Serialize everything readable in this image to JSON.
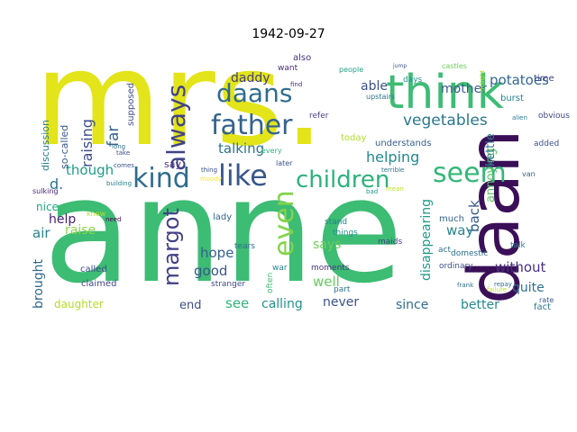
{
  "title": "1942-09-27",
  "words": [
    {
      "text": "mrs.",
      "color": "#e3e419"
    },
    {
      "text": "anne",
      "color": "#3dbc74"
    },
    {
      "text": "daan",
      "color": "#3a0f58"
    },
    {
      "text": "think",
      "color": "#3dbc74"
    },
    {
      "text": "father",
      "color": "#33638d"
    },
    {
      "text": "daans",
      "color": "#2f6c8e"
    },
    {
      "text": "like",
      "color": "#38578c"
    },
    {
      "text": "children",
      "color": "#2db27d"
    },
    {
      "text": "kind",
      "color": "#2f6c8e"
    },
    {
      "text": "seem",
      "color": "#35b779"
    },
    {
      "text": "always",
      "color": "#404387"
    },
    {
      "text": "even",
      "color": "#83d34b"
    },
    {
      "text": "margot",
      "color": "#424086"
    },
    {
      "text": "vegetables",
      "color": "#2a788e"
    },
    {
      "text": "potatoes",
      "color": "#31668e"
    },
    {
      "text": "raising",
      "color": "#3e4c8a"
    },
    {
      "text": "daddy",
      "color": "#433e85"
    },
    {
      "text": "able",
      "color": "#3b518b"
    },
    {
      "text": "mother",
      "color": "#38588c"
    },
    {
      "text": "far",
      "color": "#34618d"
    },
    {
      "text": "talking",
      "color": "#2c738e"
    },
    {
      "text": "helping",
      "color": "#23898e"
    },
    {
      "text": "though",
      "color": "#1e9b8a"
    },
    {
      "text": "d.",
      "color": "#2c728e"
    },
    {
      "text": "discussion",
      "color": "#287d8e"
    },
    {
      "text": "so-called",
      "color": "#38588c"
    },
    {
      "text": "brought",
      "color": "#31688e"
    },
    {
      "text": "annoying",
      "color": "#5cc863"
    },
    {
      "text": "kettle",
      "color": "#2a788e"
    },
    {
      "text": "back",
      "color": "#38598c"
    },
    {
      "text": "disappearing",
      "color": "#1f998a"
    },
    {
      "text": "air",
      "color": "#27808e"
    },
    {
      "text": "help",
      "color": "#481e6f"
    },
    {
      "text": "nice",
      "color": "#21a685"
    },
    {
      "text": "hope",
      "color": "#34618d"
    },
    {
      "text": "says",
      "color": "#6ece58"
    },
    {
      "text": "way",
      "color": "#25848e"
    },
    {
      "text": "good",
      "color": "#39558c"
    },
    {
      "text": "well",
      "color": "#65cb5e"
    },
    {
      "text": "without",
      "color": "#472f7d"
    },
    {
      "text": "quite",
      "color": "#2e6f8e"
    },
    {
      "text": "see",
      "color": "#2fb47c"
    },
    {
      "text": "end",
      "color": "#3d4e8a"
    },
    {
      "text": "calling",
      "color": "#21918c"
    },
    {
      "text": "never",
      "color": "#3b518b"
    },
    {
      "text": "since",
      "color": "#2f6b8e"
    },
    {
      "text": "better",
      "color": "#23898e"
    },
    {
      "text": "daughter",
      "color": "#b5de2b"
    },
    {
      "text": "claimed",
      "color": "#404688"
    },
    {
      "text": "called",
      "color": "#3e4989"
    },
    {
      "text": "today",
      "color": "#b2dd2d"
    },
    {
      "text": "understands",
      "color": "#355f8d"
    },
    {
      "text": "say",
      "color": "#46327e"
    },
    {
      "text": "part",
      "color": "#2c728e"
    },
    {
      "text": "moments",
      "color": "#463480"
    },
    {
      "text": "ordinary",
      "color": "#3b528b"
    },
    {
      "text": "domestic",
      "color": "#2e6e8e"
    },
    {
      "text": "act",
      "color": "#2c728e"
    },
    {
      "text": "stand",
      "color": "#26828e"
    },
    {
      "text": "things",
      "color": "#21918c"
    },
    {
      "text": "maids",
      "color": "#414487"
    },
    {
      "text": "lady",
      "color": "#31678e"
    },
    {
      "text": "tears",
      "color": "#2d708e"
    },
    {
      "text": "stranger",
      "color": "#3f4889"
    },
    {
      "text": "much",
      "color": "#33638d"
    },
    {
      "text": "talk",
      "color": "#26828e"
    },
    {
      "text": "added",
      "color": "#3b528b"
    },
    {
      "text": "obvious",
      "color": "#3f4788"
    },
    {
      "text": "burst",
      "color": "#26828e"
    },
    {
      "text": "time",
      "color": "#424086"
    },
    {
      "text": "also",
      "color": "#46337e"
    },
    {
      "text": "want",
      "color": "#472d7b"
    },
    {
      "text": "refer",
      "color": "#423f85"
    },
    {
      "text": "supposed",
      "color": "#3e4a89"
    },
    {
      "text": "days",
      "color": "#1f948c"
    },
    {
      "text": "people",
      "color": "#1fa088"
    },
    {
      "text": "upstairs",
      "color": "#2b748e"
    },
    {
      "text": "castles",
      "color": "#6ece58"
    },
    {
      "text": "later",
      "color": "#3b518b"
    },
    {
      "text": "every",
      "color": "#2db27d"
    },
    {
      "text": "often",
      "color": "#3dbc74"
    },
    {
      "text": "war",
      "color": "#26828e"
    },
    {
      "text": "fact",
      "color": "#2a788e"
    },
    {
      "text": "rate",
      "color": "#375b8d"
    },
    {
      "text": "need",
      "color": "#440154"
    },
    {
      "text": "know",
      "color": "#b5de2b"
    },
    {
      "text": "take",
      "color": "#3e4c8a"
    },
    {
      "text": "comes",
      "color": "#3b518b"
    },
    {
      "text": "long",
      "color": "#2c728e"
    },
    {
      "text": "building",
      "color": "#26828e"
    },
    {
      "text": "sulking",
      "color": "#482475"
    },
    {
      "text": "raise",
      "color": "#8bd646"
    },
    {
      "text": "find",
      "color": "#472a7a"
    },
    {
      "text": "thing",
      "color": "#3b528b"
    },
    {
      "text": "moody",
      "color": "#fde725"
    },
    {
      "text": "terrible",
      "color": "#2c728e"
    },
    {
      "text": "bad",
      "color": "#1f968b"
    },
    {
      "text": "delight",
      "color": "#b8de29"
    },
    {
      "text": "alien",
      "color": "#2a788e"
    },
    {
      "text": "frank",
      "color": "#2c728e"
    },
    {
      "text": "failure",
      "color": "#c2df23"
    },
    {
      "text": "repay",
      "color": "#2e6e8e"
    },
    {
      "text": "van",
      "color": "#33638d"
    },
    {
      "text": "mean",
      "color": "#bddf26"
    },
    {
      "text": "jump",
      "color": "#3b528b"
    }
  ]
}
